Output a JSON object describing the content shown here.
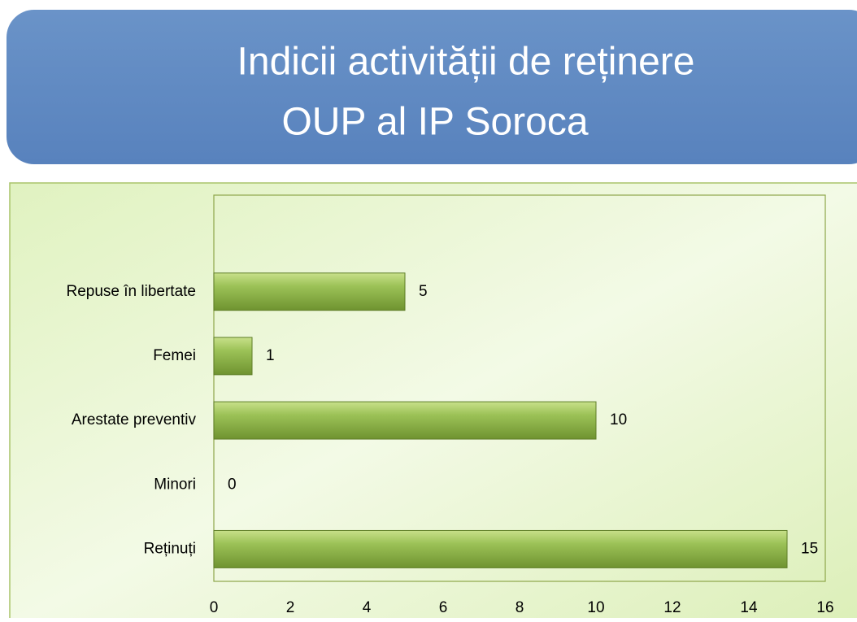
{
  "chart_data": {
    "type": "bar",
    "orientation": "horizontal",
    "title": [
      "Indicii activității de reținere",
      "OUP al IP Soroca"
    ],
    "categories": [
      null,
      "Repuse în libertate",
      "Femei",
      "Arestate preventiv",
      "Minori",
      "Reținuți"
    ],
    "values": [
      null,
      5,
      1,
      10,
      0,
      15
    ],
    "color": "#92b84a",
    "xlim": [
      0,
      16
    ],
    "xticks": [
      0,
      2,
      4,
      6,
      8,
      10,
      12,
      14,
      16
    ],
    "grid": false
  }
}
